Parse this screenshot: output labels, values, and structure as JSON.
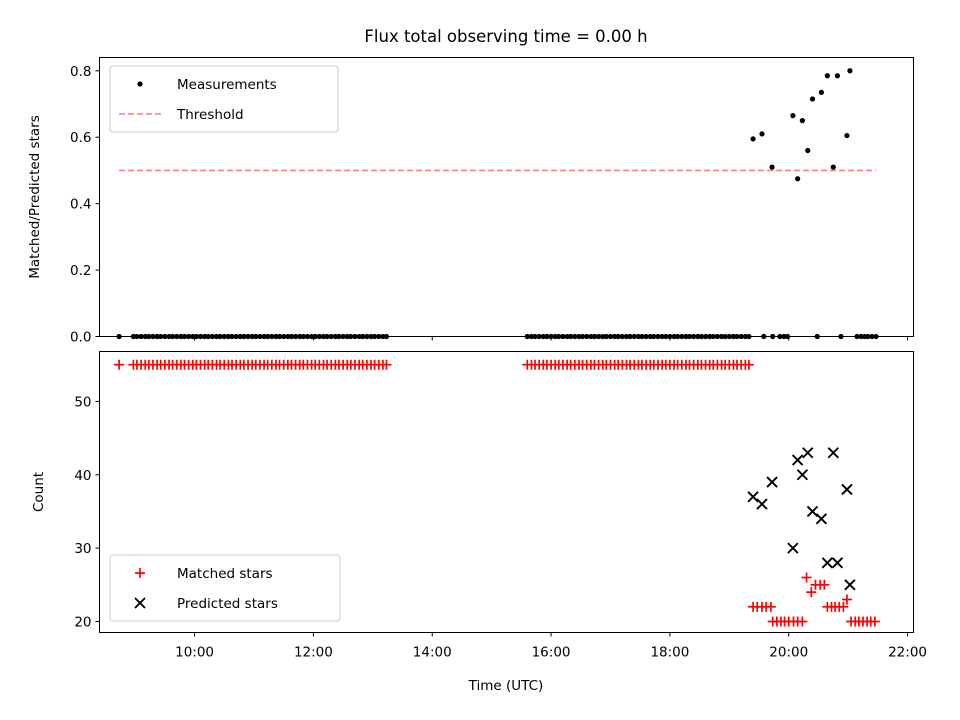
{
  "figure": {
    "title": "Flux total observing time = 0.00 h"
  },
  "chart_data": [
    {
      "type": "scatter",
      "title": "Flux total observing time = 0.00 h",
      "xlabel": "",
      "ylabel": "Matched/Predicted stars",
      "xlim": [
        8.4,
        22.1
      ],
      "ylim": [
        0.0,
        0.84
      ],
      "yticks": [
        0.0,
        0.2,
        0.4,
        0.6,
        0.8
      ],
      "ytick_labels": [
        "0.0",
        "0.2",
        "0.4",
        "0.6",
        "0.8"
      ],
      "legend_position": "upper-left",
      "series": [
        {
          "name": "Measurements",
          "kind": "points",
          "color": "#000000",
          "x": [
            8.73,
            8.97,
            9.03,
            9.1,
            9.17,
            9.23,
            9.3,
            9.37,
            9.43,
            9.5,
            9.57,
            9.63,
            9.7,
            9.77,
            9.83,
            9.9,
            9.97,
            10.03,
            10.1,
            10.17,
            10.23,
            10.3,
            10.37,
            10.43,
            10.5,
            10.57,
            10.63,
            10.7,
            10.77,
            10.83,
            10.9,
            10.97,
            11.03,
            11.1,
            11.17,
            11.23,
            11.3,
            11.37,
            11.43,
            11.5,
            11.57,
            11.63,
            11.7,
            11.77,
            11.83,
            11.9,
            11.97,
            12.03,
            12.1,
            12.17,
            12.23,
            12.3,
            12.37,
            12.43,
            12.5,
            12.57,
            12.63,
            12.7,
            12.77,
            12.83,
            12.9,
            12.97,
            13.03,
            13.1,
            13.17,
            13.23,
            15.6,
            15.67,
            15.73,
            15.8,
            15.87,
            15.93,
            16.0,
            16.07,
            16.13,
            16.2,
            16.27,
            16.33,
            16.4,
            16.47,
            16.53,
            16.6,
            16.67,
            16.73,
            16.8,
            16.87,
            16.93,
            17.0,
            17.07,
            17.13,
            17.2,
            17.27,
            17.33,
            17.4,
            17.47,
            17.53,
            17.6,
            17.67,
            17.73,
            17.8,
            17.87,
            17.93,
            18.0,
            18.07,
            18.13,
            18.2,
            18.27,
            18.33,
            18.4,
            18.47,
            18.53,
            18.6,
            18.67,
            18.73,
            18.8,
            18.87,
            18.93,
            19.0,
            19.07,
            19.13,
            19.2,
            19.27,
            19.33,
            19.58,
            19.73,
            19.85,
            19.92,
            19.98,
            20.48,
            20.88,
            21.15,
            21.22,
            21.28,
            21.33,
            21.4,
            21.47,
            19.4,
            19.55,
            19.72,
            20.07,
            20.15,
            20.23,
            20.32,
            20.4,
            20.55,
            20.65,
            20.75,
            20.82,
            20.98,
            21.03
          ],
          "y": [
            0,
            0,
            0,
            0,
            0,
            0,
            0,
            0,
            0,
            0,
            0,
            0,
            0,
            0,
            0,
            0,
            0,
            0,
            0,
            0,
            0,
            0,
            0,
            0,
            0,
            0,
            0,
            0,
            0,
            0,
            0,
            0,
            0,
            0,
            0,
            0,
            0,
            0,
            0,
            0,
            0,
            0,
            0,
            0,
            0,
            0,
            0,
            0,
            0,
            0,
            0,
            0,
            0,
            0,
            0,
            0,
            0,
            0,
            0,
            0,
            0,
            0,
            0,
            0,
            0,
            0,
            0,
            0,
            0,
            0,
            0,
            0,
            0,
            0,
            0,
            0,
            0,
            0,
            0,
            0,
            0,
            0,
            0,
            0,
            0,
            0,
            0,
            0,
            0,
            0,
            0,
            0,
            0,
            0,
            0,
            0,
            0,
            0,
            0,
            0,
            0,
            0,
            0,
            0,
            0,
            0,
            0,
            0,
            0,
            0,
            0,
            0,
            0,
            0,
            0,
            0,
            0,
            0,
            0,
            0,
            0,
            0,
            0,
            0,
            0,
            0,
            0,
            0,
            0,
            0,
            0,
            0,
            0,
            0,
            0,
            0,
            0.595,
            0.61,
            0.51,
            0.665,
            0.475,
            0.65,
            0.56,
            0.715,
            0.735,
            0.785,
            0.51,
            0.785,
            0.605,
            0.8
          ]
        },
        {
          "name": "Threshold",
          "kind": "dashed-line",
          "color": "#ff7f7f",
          "x": [
            8.73,
            21.47
          ],
          "y": [
            0.5,
            0.5
          ]
        }
      ]
    },
    {
      "type": "scatter",
      "title": "",
      "xlabel": "Time (UTC)",
      "ylabel": "Count",
      "xlim": [
        8.4,
        22.1
      ],
      "ylim": [
        18.5,
        56.8
      ],
      "xticks": [
        10,
        12,
        14,
        16,
        18,
        20,
        22
      ],
      "xtick_labels": [
        "10:00",
        "12:00",
        "14:00",
        "16:00",
        "18:00",
        "20:00",
        "22:00"
      ],
      "yticks": [
        20,
        30,
        40,
        50
      ],
      "ytick_labels": [
        "20",
        "30",
        "40",
        "50"
      ],
      "legend_position": "lower-left",
      "series": [
        {
          "name": "Matched stars",
          "marker": "plus",
          "color": "#ff0000",
          "x": [
            8.73,
            8.97,
            9.03,
            9.1,
            9.17,
            9.23,
            9.3,
            9.37,
            9.43,
            9.5,
            9.57,
            9.63,
            9.7,
            9.77,
            9.83,
            9.9,
            9.97,
            10.03,
            10.1,
            10.17,
            10.23,
            10.3,
            10.37,
            10.43,
            10.5,
            10.57,
            10.63,
            10.7,
            10.77,
            10.83,
            10.9,
            10.97,
            11.03,
            11.1,
            11.17,
            11.23,
            11.3,
            11.37,
            11.43,
            11.5,
            11.57,
            11.63,
            11.7,
            11.77,
            11.83,
            11.9,
            11.97,
            12.03,
            12.1,
            12.17,
            12.23,
            12.3,
            12.37,
            12.43,
            12.5,
            12.57,
            12.63,
            12.7,
            12.77,
            12.83,
            12.9,
            12.97,
            13.03,
            13.1,
            13.17,
            13.23,
            15.6,
            15.67,
            15.73,
            15.8,
            15.87,
            15.93,
            16.0,
            16.07,
            16.13,
            16.2,
            16.27,
            16.33,
            16.4,
            16.47,
            16.53,
            16.6,
            16.67,
            16.73,
            16.8,
            16.87,
            16.93,
            17.0,
            17.07,
            17.13,
            17.2,
            17.27,
            17.33,
            17.4,
            17.47,
            17.53,
            17.6,
            17.67,
            17.73,
            17.8,
            17.87,
            17.93,
            18.0,
            18.07,
            18.13,
            18.2,
            18.27,
            18.33,
            18.4,
            18.47,
            18.53,
            18.6,
            18.67,
            18.73,
            18.8,
            18.87,
            18.93,
            19.0,
            19.07,
            19.13,
            19.2,
            19.27,
            19.33,
            19.4,
            19.47,
            19.55,
            19.62,
            19.7,
            19.73,
            19.8,
            19.87,
            19.93,
            20.0,
            20.08,
            20.15,
            20.23,
            20.3,
            20.38,
            20.45,
            20.53,
            20.6,
            20.65,
            20.72,
            20.78,
            20.85,
            20.92,
            20.98,
            21.05,
            21.12,
            21.18,
            21.25,
            21.32,
            21.38,
            21.45
          ],
          "y": [
            55,
            55,
            55,
            55,
            55,
            55,
            55,
            55,
            55,
            55,
            55,
            55,
            55,
            55,
            55,
            55,
            55,
            55,
            55,
            55,
            55,
            55,
            55,
            55,
            55,
            55,
            55,
            55,
            55,
            55,
            55,
            55,
            55,
            55,
            55,
            55,
            55,
            55,
            55,
            55,
            55,
            55,
            55,
            55,
            55,
            55,
            55,
            55,
            55,
            55,
            55,
            55,
            55,
            55,
            55,
            55,
            55,
            55,
            55,
            55,
            55,
            55,
            55,
            55,
            55,
            55,
            55,
            55,
            55,
            55,
            55,
            55,
            55,
            55,
            55,
            55,
            55,
            55,
            55,
            55,
            55,
            55,
            55,
            55,
            55,
            55,
            55,
            55,
            55,
            55,
            55,
            55,
            55,
            55,
            55,
            55,
            55,
            55,
            55,
            55,
            55,
            55,
            55,
            55,
            55,
            55,
            55,
            55,
            55,
            55,
            55,
            55,
            55,
            55,
            55,
            55,
            55,
            55,
            55,
            55,
            55,
            55,
            55,
            22,
            22,
            22,
            22,
            22,
            20,
            20,
            20,
            20,
            20,
            20,
            20,
            20,
            26,
            24,
            25,
            25,
            25,
            22,
            22,
            22,
            22,
            22,
            23,
            20,
            20,
            20,
            20,
            20,
            20,
            20
          ]
        },
        {
          "name": "Predicted stars",
          "marker": "x",
          "color": "#000000",
          "x": [
            19.4,
            19.55,
            19.72,
            20.07,
            20.15,
            20.23,
            20.32,
            20.4,
            20.55,
            20.65,
            20.75,
            20.82,
            20.98,
            21.03
          ],
          "y": [
            37,
            36,
            39,
            30,
            42,
            40,
            43,
            35,
            34,
            28,
            43,
            28,
            38,
            25
          ]
        }
      ]
    }
  ]
}
